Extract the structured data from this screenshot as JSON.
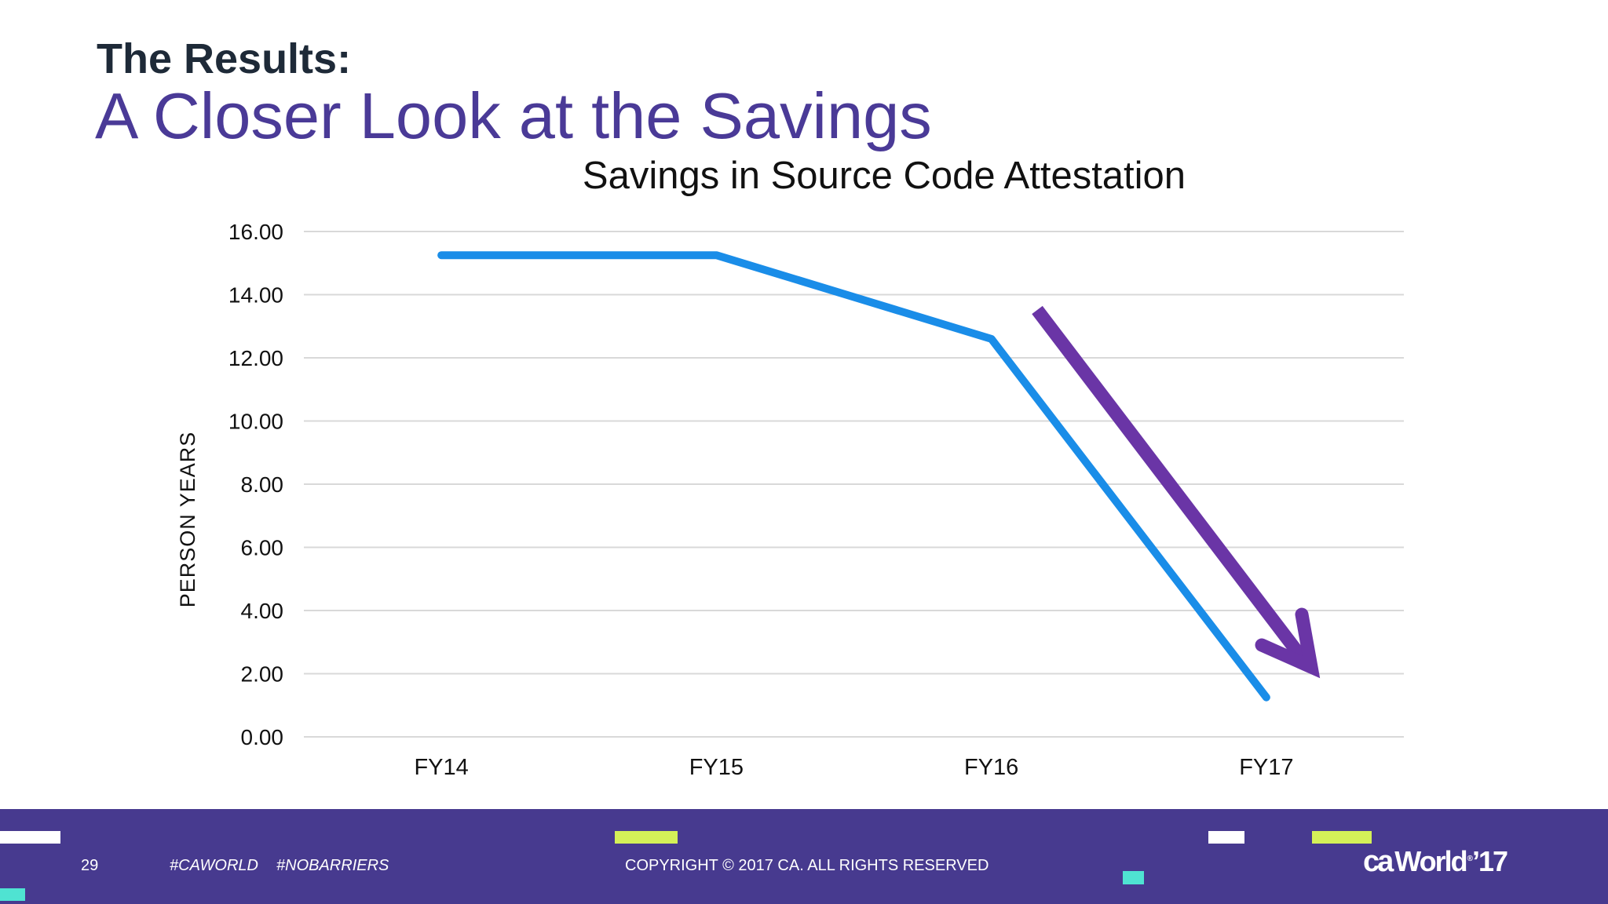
{
  "slide": {
    "subtitle": "The Results:",
    "title": "A Closer Look at the Savings"
  },
  "chart_data": {
    "type": "line",
    "title": "Savings in Source Code Attestation",
    "xlabel": "",
    "ylabel": "PERSON YEARS",
    "categories": [
      "FY14",
      "FY15",
      "FY16",
      "FY17"
    ],
    "series": [
      {
        "values": [
          15.25,
          15.25,
          12.6,
          1.25
        ],
        "color": "#1a8de8"
      }
    ],
    "ylim": [
      0,
      16
    ],
    "yticks": [
      "0.00",
      "2.00",
      "4.00",
      "6.00",
      "8.00",
      "10.00",
      "12.00",
      "14.00",
      "16.00"
    ],
    "grid": true,
    "legend": "none",
    "annotation": {
      "type": "downward-trend-arrow",
      "color": "#6a35a6"
    }
  },
  "footer": {
    "page_number": "29",
    "hashtag_1": "#CAWORLD",
    "hashtag_2": "#NOBARRIERS",
    "copyright": "COPYRIGHT © 2017 CA. ALL RIGHTS RESERVED",
    "logo": {
      "brand": "ca",
      "word": "World",
      "reg": "®",
      "year": "’17"
    },
    "colors": {
      "background": "#473a8f",
      "lime": "#d4f058",
      "white": "#ffffff",
      "teal": "#4fe3d2"
    }
  }
}
